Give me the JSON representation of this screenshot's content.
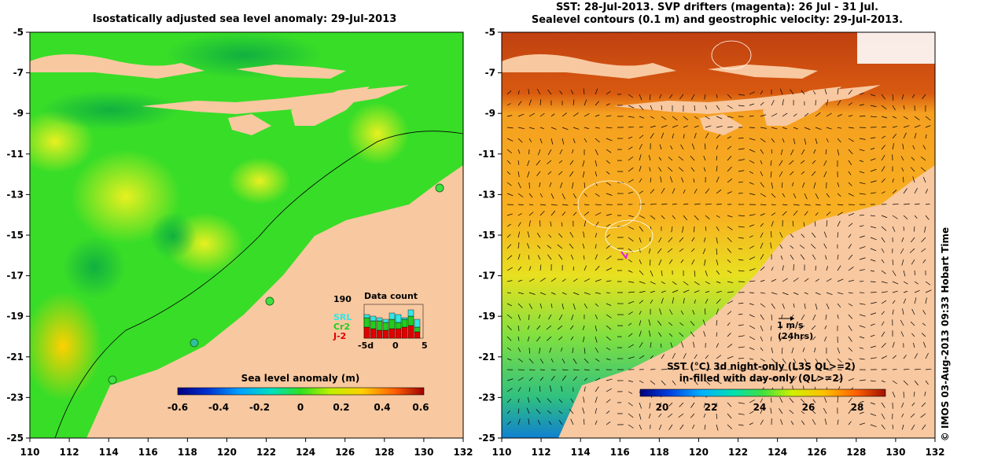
{
  "left_panel": {
    "title": "Isostatically adjusted sea level anomaly: 29-Jul-2013",
    "x_ticks": [
      "110",
      "112",
      "114",
      "116",
      "118",
      "120",
      "122",
      "124",
      "126",
      "128",
      "130",
      "132"
    ],
    "y_ticks": [
      "-5",
      "-7",
      "-9",
      "-11",
      "-13",
      "-15",
      "-17",
      "-19",
      "-21",
      "-23",
      "-25"
    ],
    "colorbar": {
      "label": "Sea level anomaly (m)",
      "ticks": [
        "-0.6",
        "-0.4",
        "-0.2",
        "0",
        "0.2",
        "0.4",
        "0.6"
      ],
      "range": [
        -0.6,
        0.6
      ]
    },
    "data_count": {
      "title": "Data count",
      "max_label": "190",
      "legend": [
        {
          "name": "SRL",
          "color": "#33e6e6"
        },
        {
          "name": "Cr2",
          "color": "#22cc22"
        },
        {
          "name": "J-2",
          "color": "#e00000"
        }
      ],
      "x_ticks": [
        "-5d",
        "0",
        "5"
      ]
    }
  },
  "right_panel": {
    "title_line1": "SST: 28-Jul-2013. SVP drifters (magenta): 26 Jul - 31 Jul.",
    "title_line2": "Sealevel contours (0.1 m) and geostrophic velocity: 29-Jul-2013.",
    "x_ticks": [
      "110",
      "112",
      "114",
      "116",
      "118",
      "120",
      "122",
      "124",
      "126",
      "128",
      "130",
      "132"
    ],
    "y_ticks": [
      "-5",
      "-7",
      "-9",
      "-11",
      "-13",
      "-15",
      "-17",
      "-19",
      "-21",
      "-23",
      "-25"
    ],
    "scale_arrow": {
      "label": "1 m/s",
      "sublabel": "(24hrs)"
    },
    "colorbar": {
      "label_line1": "SST (°C)  3d night-only (L3S QL>=2)",
      "label_line2": "in-filled with day-only (QL>=2)",
      "ticks": [
        "20",
        "22",
        "24",
        "26",
        "28"
      ],
      "range": [
        19,
        29.5
      ]
    }
  },
  "credit": "© IMOS 03-Aug-2013 09:33 Hobart Time",
  "colors": {
    "land": "#f8c8a0",
    "sla_green": "#33dd22",
    "sst_orange": "#f5a020"
  }
}
